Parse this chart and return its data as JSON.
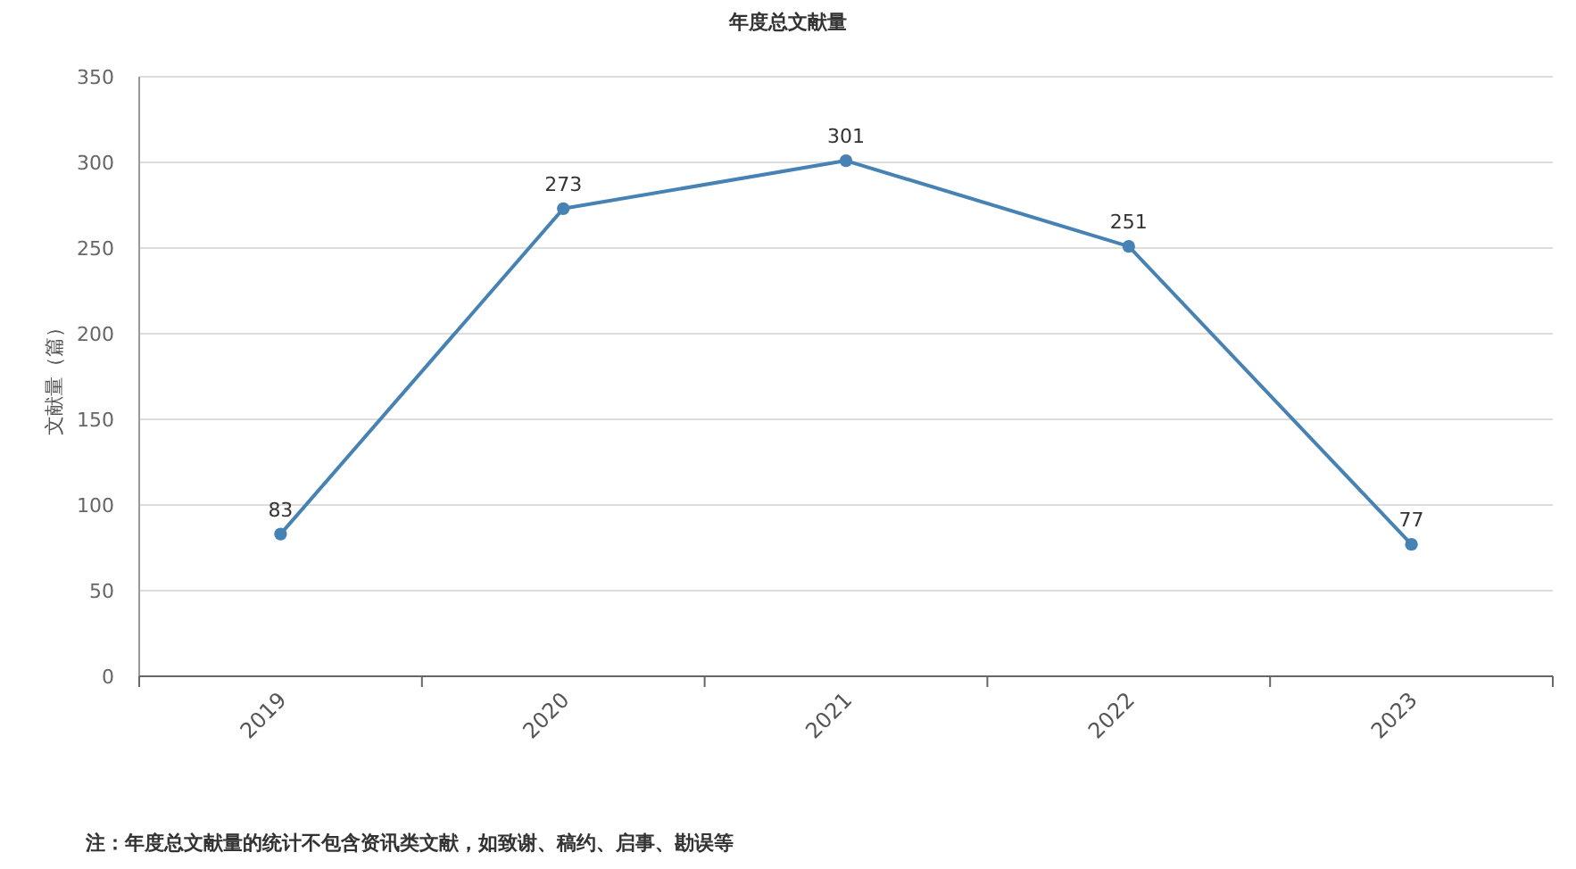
{
  "chart_data": {
    "type": "line",
    "title": "年度总文献量",
    "ylabel": "文献量（篇）",
    "categories": [
      "2019",
      "2020",
      "2021",
      "2022",
      "2023"
    ],
    "series": [
      {
        "color": "#4682b4",
        "values": [
          83,
          273,
          301,
          251,
          77
        ]
      }
    ],
    "ylim": [
      0,
      350
    ],
    "yticks": [
      0,
      50,
      100,
      150,
      200,
      250,
      300,
      350
    ],
    "grid": "y",
    "marker": "circle",
    "line_style": "solid",
    "data_labels": true,
    "annotations": [
      "注：年度总文献量的统计不包含资讯类文献，如致谢、稿约、启事、勘误等"
    ]
  }
}
